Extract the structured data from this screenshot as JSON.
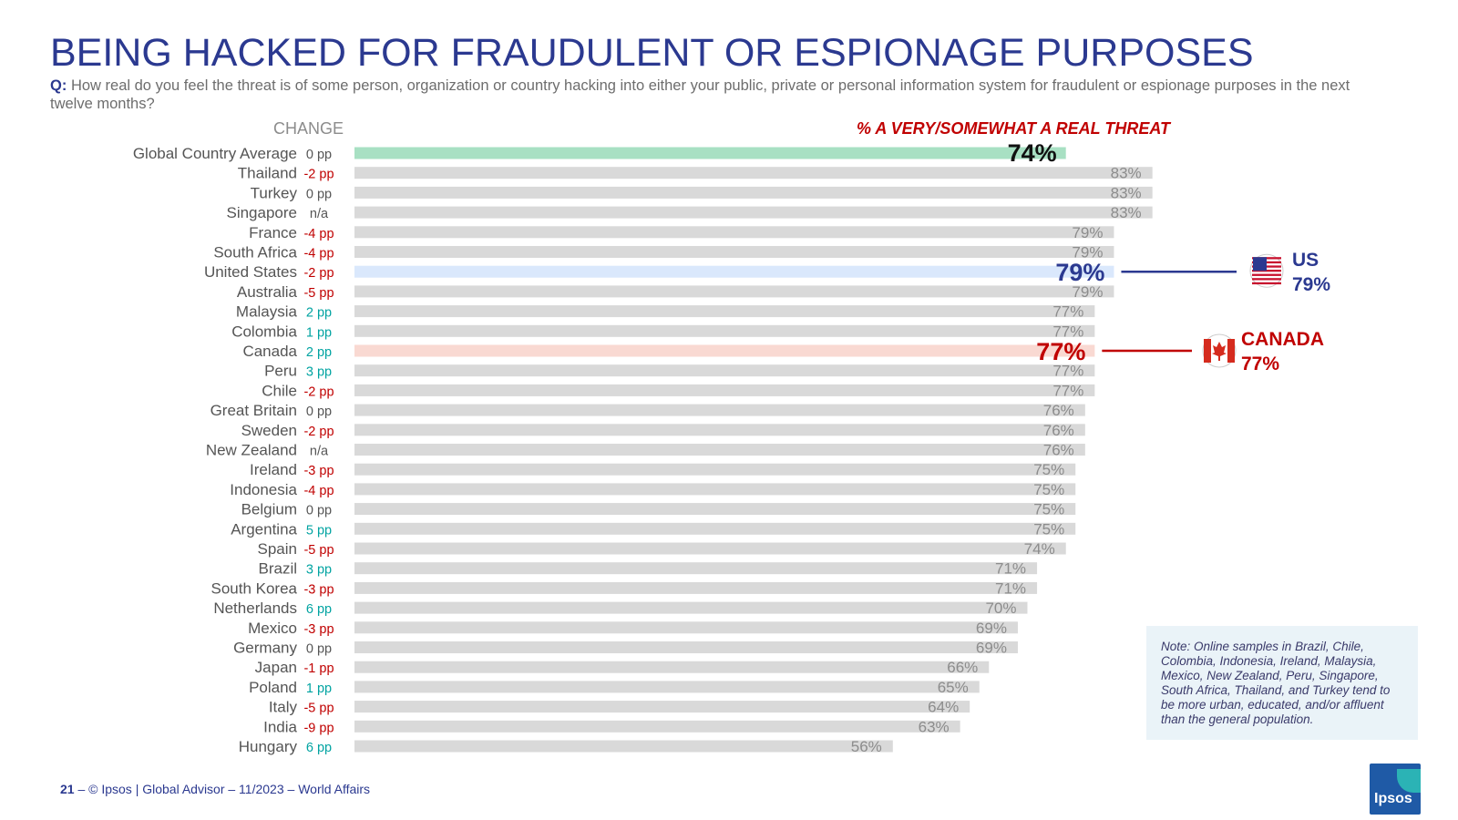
{
  "title": "BEING HACKED FOR FRAUDULENT OR ESPIONAGE PURPOSES",
  "question_prefix": "Q:",
  "question": "How real do you feel the threat is of some person, organization or country hacking into either your public, private or personal information system for fraudulent or espionage purposes in the next twelve months?",
  "change_header": "CHANGE",
  "series_header": "% A VERY/SOMEWHAT A REAL THREAT",
  "chart_data": {
    "type": "bar",
    "orientation": "horizontal",
    "title": "",
    "xlim": [
      0,
      100
    ],
    "grid": false,
    "categories": [
      "Global Country Average",
      "Thailand",
      "Turkey",
      "Singapore",
      "France",
      "South Africa",
      "United States",
      "Australia",
      "Malaysia",
      "Colombia",
      "Canada",
      "Peru",
      "Chile",
      "Great Britain",
      "Sweden",
      "New Zealand",
      "Ireland",
      "Indonesia",
      "Belgium",
      "Argentina",
      "Spain",
      "Brazil",
      "South Korea",
      "Netherlands",
      "Mexico",
      "Germany",
      "Japan",
      "Poland",
      "Italy",
      "India",
      "Hungary"
    ],
    "values": [
      74,
      83,
      83,
      83,
      79,
      79,
      79,
      79,
      77,
      77,
      77,
      77,
      77,
      76,
      76,
      76,
      75,
      75,
      75,
      75,
      74,
      71,
      71,
      70,
      69,
      69,
      66,
      65,
      64,
      63,
      56
    ],
    "value_labels": [
      "74%",
      "83%",
      "83%",
      "83%",
      "79%",
      "79%",
      "79%",
      "79%",
      "77%",
      "77%",
      "77%",
      "77%",
      "77%",
      "76%",
      "76%",
      "76%",
      "75%",
      "75%",
      "75%",
      "75%",
      "74%",
      "71%",
      "71%",
      "70%",
      "69%",
      "69%",
      "66%",
      "65%",
      "64%",
      "63%",
      "56%"
    ],
    "change": [
      "0 pp",
      "-2 pp",
      "0 pp",
      "n/a",
      "-4 pp",
      "-4 pp",
      "-2 pp",
      "-5 pp",
      "2 pp",
      "1 pp",
      "2 pp",
      "3 pp",
      "-2 pp",
      "0 pp",
      "-2 pp",
      "n/a",
      "-3 pp",
      "-4 pp",
      "0 pp",
      "5 pp",
      "-5 pp",
      "3 pp",
      "-3 pp",
      "6 pp",
      "-3 pp",
      "0 pp",
      "-1 pp",
      "1 pp",
      "-5 pp",
      "-9 pp",
      "6 pp"
    ],
    "highlights": {
      "Global Country Average": "#a8e0c3",
      "United States": "#dae8fc",
      "Canada": "#f9d9d2"
    },
    "colors": {
      "bar": "#d9d9d9",
      "label": "#8c8c8c",
      "change_neutral": "#555555",
      "change_negative": "#c00000",
      "change_positive": "#00a3a1",
      "us": "#2b3990",
      "canada": "#c00000"
    }
  },
  "callouts": {
    "us": {
      "name": "US",
      "value": "79%",
      "icon": "us-flag-icon"
    },
    "canada": {
      "name": "CANADA",
      "value": "77%",
      "icon": "canada-flag-icon"
    }
  },
  "note": "Note: Online samples in Brazil, Chile, Colombia, Indonesia, Ireland, Malaysia, Mexico, New Zealand, Peru, Singapore, South Africa, Thailand, and Turkey tend to be more urban, educated, and/or affluent than the general population.",
  "footer": {
    "page": "21",
    "text": "– © Ipsos | Global Advisor – 11/2023 – World Affairs"
  },
  "logo": {
    "text": "Ipsos"
  }
}
